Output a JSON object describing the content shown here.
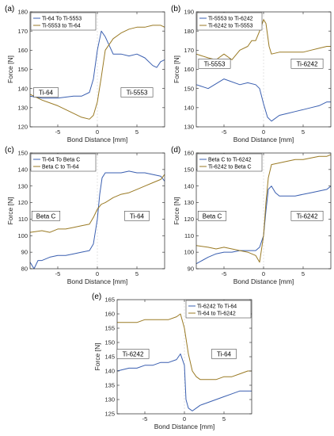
{
  "colors": {
    "blue": "#3a5fb0",
    "gold": "#9a7a24"
  },
  "chart_data": [
    {
      "type": "line",
      "panel_label": "(a)",
      "xlabel": "Bond Distance [mm]",
      "ylabel": "Force [N]",
      "xlim": [
        -8.5,
        8.5
      ],
      "ylim": [
        120,
        180
      ],
      "xticks": [
        -5,
        0,
        5
      ],
      "yticks": [
        120,
        130,
        140,
        150,
        160,
        170,
        180
      ],
      "legend_position": "top-left",
      "annotations": [
        {
          "text": "Ti-64",
          "x": -6.5,
          "y": 138
        },
        {
          "text": "Ti-5553",
          "x": 5,
          "y": 138
        }
      ],
      "series": [
        {
          "name": "Ti-64 To Ti-5553",
          "color": "#3a5fb0",
          "x": [
            -8.5,
            -7,
            -5,
            -3,
            -2,
            -1,
            -0.5,
            0,
            0.5,
            1,
            2,
            3,
            4,
            5,
            6,
            7,
            7.5,
            8,
            8.5
          ],
          "y": [
            136,
            135,
            135,
            136,
            136,
            138,
            145,
            160,
            170,
            167,
            158,
            158,
            157,
            158,
            156,
            152,
            151,
            154,
            155
          ]
        },
        {
          "name": "Ti-5553 to Ti-64",
          "color": "#9a7a24",
          "x": [
            -8.5,
            -7,
            -5,
            -3,
            -2,
            -1,
            -0.5,
            0,
            0.5,
            1,
            2,
            3,
            4,
            5,
            6,
            7,
            8,
            8.5
          ],
          "y": [
            137,
            134,
            131,
            127,
            125,
            124,
            126,
            133,
            146,
            160,
            166,
            169,
            171,
            172,
            172,
            173,
            173,
            172
          ]
        }
      ]
    },
    {
      "type": "line",
      "panel_label": "(b)",
      "xlabel": "Bond Distance [mm]",
      "ylabel": "Force [N]",
      "xlim": [
        -8.5,
        8.5
      ],
      "ylim": [
        130,
        190
      ],
      "xticks": [
        -5,
        0,
        5
      ],
      "yticks": [
        130,
        140,
        150,
        160,
        170,
        180,
        190
      ],
      "legend_position": "top-left",
      "annotations": [
        {
          "text": "Ti-5553",
          "x": -6.2,
          "y": 163
        },
        {
          "text": "Ti-6242",
          "x": 5.5,
          "y": 163
        }
      ],
      "series": [
        {
          "name": "Ti-5553 to Ti-6242",
          "color": "#3a5fb0",
          "x": [
            -8.5,
            -7,
            -5,
            -3,
            -2,
            -1,
            -0.5,
            0,
            0.5,
            1,
            2,
            3,
            4,
            5,
            6,
            7,
            8,
            8.5
          ],
          "y": [
            152,
            150,
            155,
            152,
            153,
            152,
            150,
            142,
            135,
            133,
            136,
            137,
            138,
            139,
            140,
            141,
            143,
            143
          ]
        },
        {
          "name": "Ti-6242 to Ti-5553",
          "color": "#9a7a24",
          "x": [
            -8.5,
            -7,
            -6,
            -5,
            -4,
            -3,
            -2,
            -1.5,
            -1,
            -0.5,
            0,
            0.3,
            0.7,
            1,
            2,
            3,
            4,
            5,
            6,
            7,
            8,
            8.5
          ],
          "y": [
            168,
            166,
            165,
            168,
            165,
            170,
            172,
            175,
            175,
            180,
            186,
            184,
            172,
            168,
            169,
            169,
            169,
            169,
            170,
            171,
            172,
            172
          ]
        }
      ]
    },
    {
      "type": "line",
      "panel_label": "(c)",
      "xlabel": "Bond Distance [mm]",
      "ylabel": "Force [N]",
      "xlim": [
        -8.5,
        8.5
      ],
      "ylim": [
        80,
        150
      ],
      "xticks": [
        -5,
        0,
        5
      ],
      "yticks": [
        80,
        90,
        100,
        110,
        120,
        130,
        140,
        150
      ],
      "legend_position": "top-left",
      "annotations": [
        {
          "text": "Beta C",
          "x": -6.5,
          "y": 112
        },
        {
          "text": "Ti-64",
          "x": 5,
          "y": 112
        }
      ],
      "series": [
        {
          "name": "Ti-64 To Beta C",
          "color": "#3a5fb0",
          "x": [
            -8.5,
            -8,
            -7.5,
            -7,
            -6,
            -5,
            -4,
            -3,
            -2,
            -1,
            -0.5,
            0,
            0.3,
            0.6,
            1,
            2,
            3,
            4,
            5,
            6,
            7,
            8,
            8.5
          ],
          "y": [
            84,
            80,
            85,
            85,
            87,
            88,
            88,
            89,
            90,
            91,
            95,
            110,
            125,
            135,
            138,
            138,
            138,
            139,
            138,
            138,
            137,
            136,
            133
          ]
        },
        {
          "name": "Beta C to Ti-64",
          "color": "#9a7a24",
          "x": [
            -8.5,
            -7,
            -6,
            -5,
            -4,
            -3,
            -2,
            -1,
            -0.5,
            0,
            0.5,
            1,
            2,
            3,
            4,
            5,
            6,
            7,
            8,
            8.5
          ],
          "y": [
            102,
            103,
            102,
            104,
            104,
            105,
            106,
            107,
            111,
            116,
            119,
            120,
            123,
            125,
            126,
            128,
            130,
            132,
            134,
            137
          ]
        }
      ]
    },
    {
      "type": "line",
      "panel_label": "(d)",
      "xlabel": "Bond Distance [mm]",
      "ylabel": "Force [N]",
      "xlim": [
        -8.5,
        8.5
      ],
      "ylim": [
        90,
        160
      ],
      "xticks": [
        -5,
        0,
        5
      ],
      "yticks": [
        90,
        100,
        110,
        120,
        130,
        140,
        150,
        160
      ],
      "legend_position": "top-left",
      "annotations": [
        {
          "text": "Beta C",
          "x": -6.5,
          "y": 122
        },
        {
          "text": "Ti-6242",
          "x": 5.5,
          "y": 122
        }
      ],
      "series": [
        {
          "name": "Beta C to Ti-6242",
          "color": "#3a5fb0",
          "x": [
            -8.5,
            -7,
            -6,
            -5,
            -4,
            -3,
            -2,
            -1,
            -0.5,
            0,
            0.3,
            0.6,
            1,
            1.5,
            2,
            3,
            4,
            5,
            6,
            7,
            8,
            8.5
          ],
          "y": [
            93,
            97,
            99,
            100,
            100,
            101,
            101,
            101,
            103,
            110,
            125,
            138,
            140,
            136,
            134,
            134,
            134,
            135,
            136,
            137,
            138,
            140
          ]
        },
        {
          "name": "Ti-6242 to Beta C",
          "color": "#9a7a24",
          "x": [
            -8.5,
            -7,
            -6,
            -5,
            -4,
            -3,
            -2,
            -1,
            -0.5,
            0,
            0.3,
            0.6,
            1,
            2,
            3,
            4,
            5,
            6,
            7,
            8,
            8.5
          ],
          "y": [
            104,
            103,
            102,
            103,
            102,
            101,
            100,
            98,
            94,
            110,
            130,
            145,
            153,
            154,
            155,
            156,
            156,
            157,
            158,
            158,
            159
          ]
        }
      ]
    },
    {
      "type": "line",
      "panel_label": "(e)",
      "xlabel": "Bond Distance [mm]",
      "ylabel": "Force [N]",
      "xlim": [
        -8.5,
        8.5
      ],
      "ylim": [
        125,
        165
      ],
      "xticks": [
        -5,
        0,
        5
      ],
      "yticks": [
        125,
        130,
        135,
        140,
        145,
        150,
        155,
        160,
        165
      ],
      "legend_position": "top-right",
      "annotations": [
        {
          "text": "Ti-6242",
          "x": -6.5,
          "y": 146
        },
        {
          "text": "Ti-64",
          "x": 5,
          "y": 146
        }
      ],
      "series": [
        {
          "name": "Ti-6242 To Ti-64",
          "color": "#3a5fb0",
          "x": [
            -8.5,
            -7,
            -6,
            -5,
            -4,
            -3,
            -2,
            -1,
            -0.5,
            0,
            0.2,
            0.5,
            1,
            1.5,
            2,
            3,
            4,
            5,
            6,
            7,
            8,
            8.5
          ],
          "y": [
            140,
            141,
            141,
            142,
            142,
            143,
            143,
            144,
            146,
            142,
            130,
            127,
            126,
            127,
            128,
            129,
            130,
            131,
            132,
            133,
            133,
            133
          ]
        },
        {
          "name": "Ti-64 to Ti-6242",
          "color": "#9a7a24",
          "x": [
            -8.5,
            -7,
            -6,
            -5,
            -4,
            -3,
            -2,
            -1,
            -0.5,
            0,
            0.5,
            1,
            1.5,
            2,
            3,
            4,
            5,
            6,
            7,
            8,
            8.5
          ],
          "y": [
            157,
            157,
            157,
            158,
            158,
            158,
            158,
            159,
            160,
            155,
            146,
            140,
            138,
            137,
            137,
            137,
            138,
            138,
            139,
            140,
            140
          ]
        }
      ]
    }
  ]
}
